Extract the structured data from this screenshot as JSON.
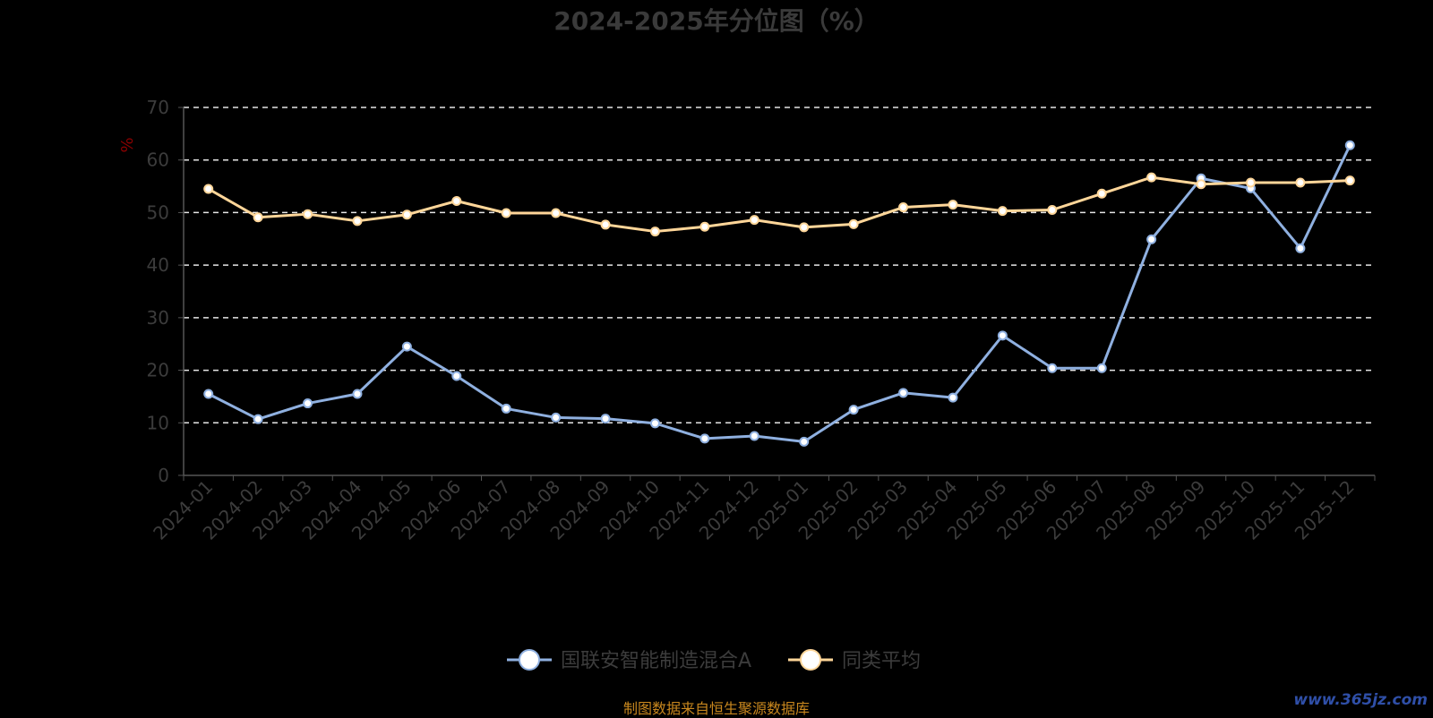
{
  "chart_data": {
    "type": "line",
    "title": "2024-2025年分位图（%）",
    "ylabel": "%",
    "ylim": [
      0,
      70
    ],
    "yticks": [
      0,
      10,
      20,
      30,
      40,
      50,
      60,
      70
    ],
    "grid": true,
    "legend_position": "bottom",
    "categories": [
      "2024-01",
      "2024-02",
      "2024-03",
      "2024-04",
      "2024-05",
      "2024-06",
      "2024-07",
      "2024-08",
      "2024-09",
      "2024-10",
      "2024-11",
      "2024-12",
      "2025-01",
      "2025-02",
      "2025-03",
      "2025-04",
      "2025-05",
      "2025-06",
      "2025-07",
      "2025-08",
      "2025-09",
      "2025-10",
      "2025-11",
      "2025-12"
    ],
    "series": [
      {
        "name": "国联安智能制造混合A",
        "color": "#8fb0e0",
        "values": [
          15.5,
          10.7,
          13.7,
          15.5,
          24.5,
          18.9,
          12.7,
          11.0,
          10.8,
          9.9,
          7.0,
          7.5,
          6.4,
          12.5,
          15.7,
          14.8,
          26.6,
          20.4,
          20.4,
          44.9,
          56.5,
          54.6,
          43.2,
          62.8
        ]
      },
      {
        "name": "同类平均",
        "color": "#ffd699",
        "values": [
          54.5,
          49.1,
          49.7,
          48.4,
          49.6,
          52.2,
          49.9,
          49.9,
          47.7,
          46.4,
          47.3,
          48.6,
          47.2,
          47.8,
          51.0,
          51.5,
          50.3,
          50.5,
          53.6,
          56.7,
          55.4,
          55.7,
          55.7,
          56.1
        ]
      }
    ]
  },
  "footer": {
    "source": "制图数据来自恒生聚源数据库",
    "watermark": "www.365jz.com"
  }
}
